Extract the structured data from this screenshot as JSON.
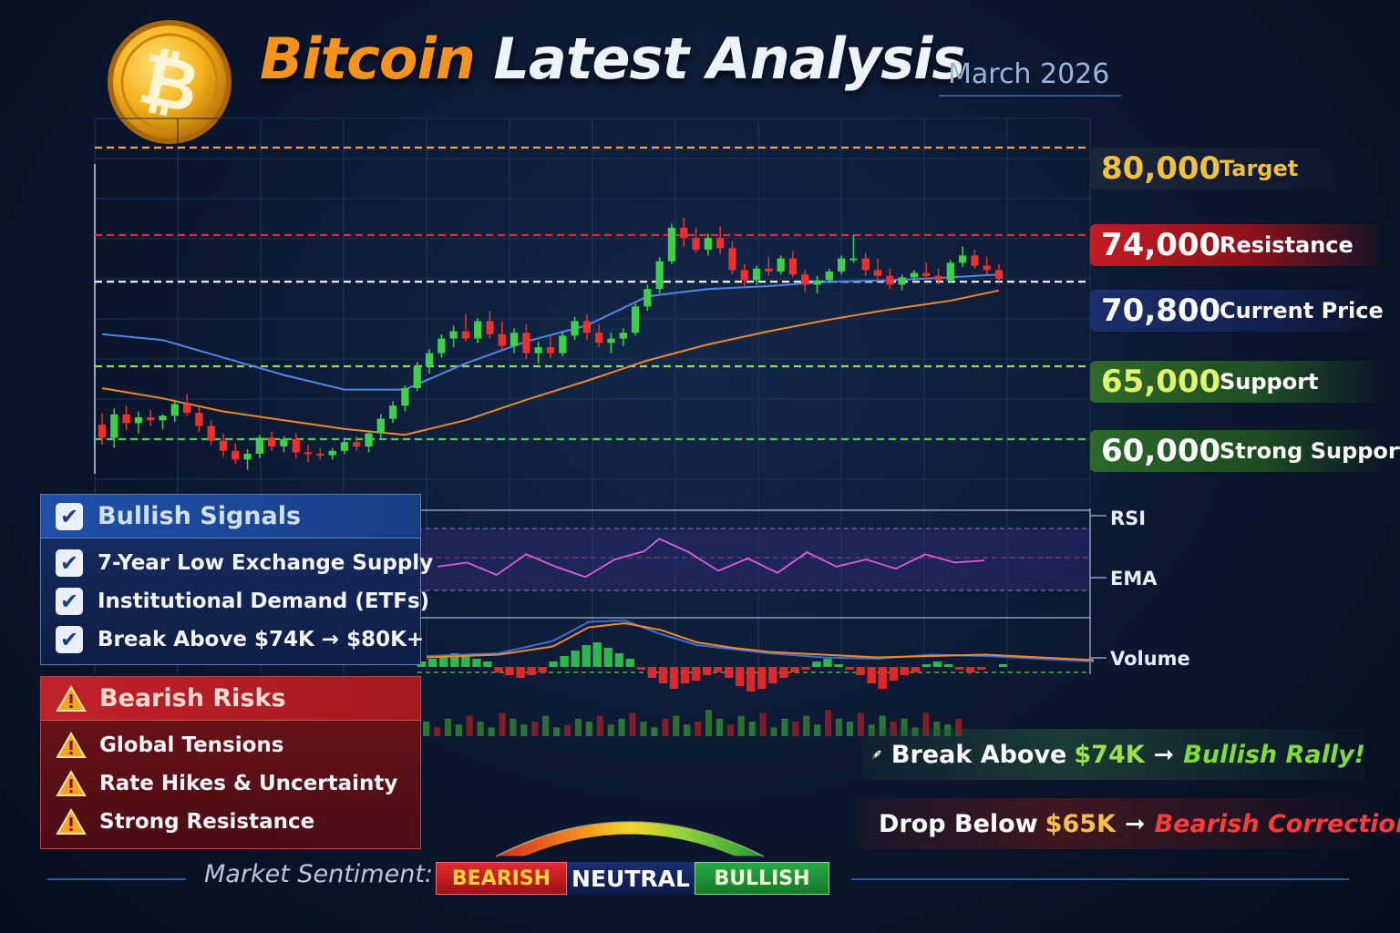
{
  "header": {
    "title_btc": "Bitcoin",
    "title_rest": "Latest Analysis",
    "date": "March 2026",
    "logo_icon": "bitcoin-coin-icon"
  },
  "levels": [
    {
      "value": "80,000",
      "label": "Target",
      "color": "#f2c13b"
    },
    {
      "value": "74,000",
      "label": "Resistance",
      "color": "#e62a2a"
    },
    {
      "value": "70,800",
      "label": "Current Price",
      "color": "#ffffff"
    },
    {
      "value": "65,000",
      "label": "Support",
      "color": "#8ee14a"
    },
    {
      "value": "60,000",
      "label": "Strong Support",
      "color": "#4fcf4a"
    }
  ],
  "indicator_labels": {
    "rsi": "RSI",
    "ema": "EMA",
    "volume": "Volume"
  },
  "bullish": {
    "title": "Bullish Signals",
    "items": [
      "7-Year Low Exchange Supply",
      "Institutional Demand (ETFs)",
      "Break Above $74K → $80K+"
    ]
  },
  "bearish": {
    "title": "Bearish Risks",
    "items": [
      "Global Tensions",
      "Rate Hikes & Uncertainty",
      "Strong Resistance"
    ]
  },
  "callouts": {
    "up_prefix": "Break Above",
    "up_level": "$74K",
    "up_arrow": "➞",
    "up_result": "Bullish Rally!",
    "up_icon": "rocket-icon",
    "down_prefix": "Drop Below",
    "down_level": "$65K",
    "down_arrow": "➞",
    "down_result": "Bearish Correction!",
    "down_icon": "warning-icon"
  },
  "sentiment": {
    "label": "Market Sentiment:",
    "bearish": "BEARISH",
    "neutral": "NEUTRAL",
    "bullish": "BULLISH",
    "colors": {
      "bearish": "#c8161d",
      "neutral": "#12235a",
      "bullish": "#1f9a3a"
    }
  },
  "chart_data": {
    "type": "candlestick",
    "title": "Bitcoin Latest Analysis",
    "subtitle": "March 2026",
    "ylim": [
      57000,
      82000
    ],
    "reference_lines": [
      {
        "value": 80000,
        "label": "Target",
        "color": "#f2a53a",
        "style": "dashed"
      },
      {
        "value": 74000,
        "label": "Resistance",
        "color": "#e62a2a",
        "style": "dashed"
      },
      {
        "value": 70800,
        "label": "Current Price",
        "color": "#ffffff",
        "style": "dashed"
      },
      {
        "value": 65000,
        "label": "Support",
        "color": "#8ee14a",
        "style": "dashed"
      },
      {
        "value": 60000,
        "label": "Strong Support",
        "color": "#4fcf4a",
        "style": "dashed"
      }
    ],
    "candles": [
      [
        61000,
        61800,
        59600,
        60100
      ],
      [
        60100,
        62100,
        59400,
        61700
      ],
      [
        61700,
        62300,
        60600,
        61100
      ],
      [
        61100,
        61900,
        60400,
        61500
      ],
      [
        61500,
        62000,
        60900,
        61300
      ],
      [
        61300,
        61700,
        60700,
        61600
      ],
      [
        61600,
        62700,
        61200,
        62400
      ],
      [
        62400,
        63100,
        61600,
        61800
      ],
      [
        61800,
        62200,
        60500,
        60900
      ],
      [
        60900,
        61300,
        59600,
        59900
      ],
      [
        59900,
        60400,
        58800,
        59200
      ],
      [
        59200,
        59700,
        58300,
        58600
      ],
      [
        58600,
        59300,
        57900,
        59000
      ],
      [
        59000,
        60300,
        58700,
        60100
      ],
      [
        60100,
        60500,
        59200,
        59500
      ],
      [
        59500,
        60200,
        59100,
        60000
      ],
      [
        60000,
        60400,
        58700,
        59100
      ],
      [
        59100,
        59600,
        58400,
        59000
      ],
      [
        59000,
        59400,
        58600,
        58900
      ],
      [
        58900,
        59400,
        58600,
        59200
      ],
      [
        59200,
        60100,
        59000,
        59800
      ],
      [
        59800,
        60200,
        59200,
        59500
      ],
      [
        59500,
        60600,
        59100,
        60400
      ],
      [
        60400,
        61700,
        60100,
        61400
      ],
      [
        61400,
        62600,
        61100,
        62300
      ],
      [
        62300,
        63700,
        61900,
        63500
      ],
      [
        63500,
        65300,
        63300,
        65000
      ],
      [
        65000,
        66200,
        64500,
        65900
      ],
      [
        65900,
        67200,
        65600,
        66900
      ],
      [
        66900,
        67800,
        66300,
        67400
      ],
      [
        67400,
        68600,
        66700,
        66900
      ],
      [
        66900,
        68300,
        66600,
        68100
      ],
      [
        68100,
        68800,
        66900,
        67200
      ],
      [
        67200,
        68100,
        66100,
        66400
      ],
      [
        66400,
        67600,
        65900,
        67300
      ],
      [
        67300,
        67900,
        65500,
        65900
      ],
      [
        65900,
        66700,
        65200,
        66300
      ],
      [
        66300,
        67100,
        65600,
        65900
      ],
      [
        65900,
        67400,
        65700,
        67100
      ],
      [
        67100,
        68400,
        66800,
        68100
      ],
      [
        68100,
        68600,
        66800,
        67300
      ],
      [
        67300,
        67900,
        66300,
        66600
      ],
      [
        66600,
        67300,
        65900,
        66900
      ],
      [
        66900,
        67600,
        66400,
        67300
      ],
      [
        67300,
        69300,
        67100,
        69100
      ],
      [
        69100,
        70600,
        68800,
        70300
      ],
      [
        70300,
        72500,
        70000,
        72200
      ],
      [
        72200,
        74800,
        72000,
        74500
      ],
      [
        74500,
        75200,
        73200,
        73800
      ],
      [
        73800,
        74500,
        72800,
        73000
      ],
      [
        73000,
        74100,
        72600,
        73800
      ],
      [
        73800,
        74600,
        72700,
        73100
      ],
      [
        73100,
        73600,
        71300,
        71600
      ],
      [
        71600,
        72000,
        70500,
        70900
      ],
      [
        70900,
        71900,
        70600,
        71700
      ],
      [
        71700,
        72500,
        71200,
        71500
      ],
      [
        71500,
        72600,
        71300,
        72400
      ],
      [
        72400,
        72900,
        71100,
        71300
      ],
      [
        71300,
        71600,
        70100,
        70600
      ],
      [
        70600,
        71200,
        70000,
        70900
      ],
      [
        70900,
        71700,
        70700,
        71500
      ],
      [
        71500,
        72600,
        71300,
        72400
      ],
      [
        72400,
        74000,
        72100,
        72400
      ],
      [
        72400,
        72800,
        71200,
        71600
      ],
      [
        71600,
        72400,
        70800,
        71200
      ],
      [
        71200,
        71700,
        70300,
        70600
      ],
      [
        70600,
        71300,
        70200,
        71100
      ],
      [
        71100,
        71600,
        70800,
        71400
      ],
      [
        71400,
        72100,
        70900,
        71200
      ],
      [
        71200,
        71700,
        70600,
        70900
      ],
      [
        70900,
        72300,
        70700,
        72100
      ],
      [
        72100,
        73200,
        71800,
        72600
      ],
      [
        72600,
        73000,
        71700,
        71900
      ],
      [
        71900,
        72500,
        71300,
        71600
      ],
      [
        71600,
        72000,
        70800,
        71000
      ]
    ],
    "ema_fast": [
      [
        0,
        67200
      ],
      [
        5,
        66800
      ],
      [
        10,
        65600
      ],
      [
        15,
        64400
      ],
      [
        20,
        63400
      ],
      [
        25,
        63400
      ],
      [
        30,
        65200
      ],
      [
        35,
        66700
      ],
      [
        40,
        67800
      ],
      [
        45,
        69800
      ],
      [
        50,
        70300
      ],
      [
        55,
        70500
      ],
      [
        60,
        70800
      ],
      [
        65,
        70900
      ],
      [
        70,
        71100
      ],
      [
        74,
        71300
      ]
    ],
    "ema_slow": [
      [
        0,
        63500
      ],
      [
        5,
        62800
      ],
      [
        10,
        61900
      ],
      [
        15,
        61300
      ],
      [
        20,
        60700
      ],
      [
        25,
        60300
      ],
      [
        30,
        61300
      ],
      [
        35,
        62700
      ],
      [
        40,
        64000
      ],
      [
        45,
        65400
      ],
      [
        50,
        66500
      ],
      [
        55,
        67400
      ],
      [
        60,
        68200
      ],
      [
        65,
        68900
      ],
      [
        70,
        69500
      ],
      [
        74,
        70200
      ]
    ],
    "rsi": [
      [
        0,
        48
      ],
      [
        4,
        52
      ],
      [
        8,
        40
      ],
      [
        12,
        60
      ],
      [
        16,
        48
      ],
      [
        20,
        38
      ],
      [
        24,
        55
      ],
      [
        28,
        63
      ],
      [
        30,
        75
      ],
      [
        34,
        62
      ],
      [
        38,
        44
      ],
      [
        42,
        56
      ],
      [
        46,
        42
      ],
      [
        50,
        62
      ],
      [
        54,
        48
      ],
      [
        58,
        55
      ],
      [
        62,
        46
      ],
      [
        66,
        60
      ],
      [
        70,
        52
      ],
      [
        74,
        54
      ]
    ],
    "macd_line": [
      [
        0,
        8
      ],
      [
        8,
        12
      ],
      [
        14,
        30
      ],
      [
        18,
        58
      ],
      [
        22,
        60
      ],
      [
        26,
        40
      ],
      [
        30,
        24
      ],
      [
        34,
        18
      ],
      [
        38,
        12
      ],
      [
        44,
        6
      ],
      [
        50,
        4
      ],
      [
        56,
        10
      ],
      [
        62,
        8
      ],
      [
        68,
        4
      ],
      [
        74,
        0
      ]
    ],
    "signal_line": [
      [
        0,
        6
      ],
      [
        8,
        10
      ],
      [
        14,
        22
      ],
      [
        18,
        50
      ],
      [
        22,
        56
      ],
      [
        26,
        46
      ],
      [
        30,
        28
      ],
      [
        34,
        20
      ],
      [
        38,
        14
      ],
      [
        44,
        10
      ],
      [
        50,
        6
      ],
      [
        56,
        8
      ],
      [
        62,
        10
      ],
      [
        68,
        6
      ],
      [
        74,
        2
      ]
    ],
    "macd_hist": [
      2,
      3,
      4,
      5,
      4,
      3,
      2,
      -2,
      -3,
      -4,
      -3,
      -2,
      2,
      4,
      6,
      8,
      9,
      7,
      5,
      3,
      -1,
      -4,
      -6,
      -8,
      -6,
      -5,
      -3,
      -2,
      -4,
      -7,
      -9,
      -8,
      -6,
      -4,
      -2,
      -1,
      2,
      3,
      1,
      -1,
      -3,
      -6,
      -8,
      -5,
      -3,
      -2,
      1,
      2,
      1,
      -1,
      -2,
      -1,
      0,
      1,
      0
    ],
    "volume": [
      5,
      3,
      6,
      4,
      7,
      5,
      3,
      8,
      6,
      4,
      5,
      7,
      3,
      4,
      6,
      5,
      7,
      4,
      6,
      8,
      5,
      3,
      6,
      7,
      4,
      5,
      9,
      6,
      4,
      7,
      5,
      8,
      3,
      6,
      5,
      7,
      4,
      9,
      6,
      5,
      8,
      4,
      7,
      5,
      6,
      3,
      8,
      5,
      4,
      6
    ],
    "legend": [
      "RSI",
      "EMA",
      "Volume"
    ]
  }
}
